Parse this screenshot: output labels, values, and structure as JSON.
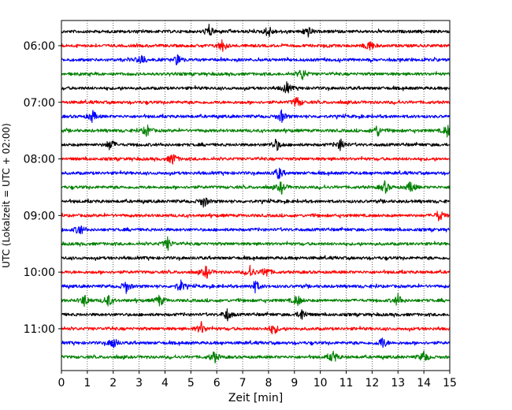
{
  "chart_data": {
    "type": "line",
    "chart_kind": "helicorder (seismogram drum plot)",
    "xlabel": "Zeit  [min]",
    "ylabel": "UTC (Lokalzeit = UTC + 02:00)",
    "xlim": [
      0,
      15
    ],
    "x_ticks": [
      "0",
      "1",
      "2",
      "3",
      "4",
      "5",
      "6",
      "7",
      "8",
      "9",
      "10",
      "11",
      "12",
      "13",
      "14",
      "15"
    ],
    "y_tick_labels": [
      "06:00",
      "07:00",
      "08:00",
      "09:00",
      "10:00",
      "11:00"
    ],
    "trace_interval_min": 15,
    "trace_start": "05:45",
    "trace_end": "11:45",
    "grid": "vertical dotted lines every minute",
    "trace_colors": [
      "#000000",
      "#ff0000",
      "#0000ff",
      "#008000"
    ],
    "traces": [
      {
        "start": "05:45",
        "color": "#000000",
        "events_min": [
          5.7,
          8.0,
          9.5
        ]
      },
      {
        "start": "06:00",
        "color": "#ff0000",
        "events_min": [
          6.2,
          11.9
        ]
      },
      {
        "start": "06:15",
        "color": "#0000ff",
        "events_min": [
          3.1,
          4.5
        ]
      },
      {
        "start": "06:30",
        "color": "#008000",
        "events_min": [
          9.3
        ]
      },
      {
        "start": "06:45",
        "color": "#000000",
        "events_min": [
          8.7
        ]
      },
      {
        "start": "07:00",
        "color": "#ff0000",
        "events_min": [
          9.1
        ]
      },
      {
        "start": "07:15",
        "color": "#0000ff",
        "events_min": [
          1.2,
          8.5
        ]
      },
      {
        "start": "07:30",
        "color": "#008000",
        "events_min": [
          3.3,
          12.2,
          14.9
        ]
      },
      {
        "start": "07:45",
        "color": "#000000",
        "events_min": [
          1.9,
          8.3,
          10.8
        ]
      },
      {
        "start": "08:00",
        "color": "#ff0000",
        "events_min": [
          4.3
        ]
      },
      {
        "start": "08:15",
        "color": "#0000ff",
        "events_min": [
          8.4
        ]
      },
      {
        "start": "08:30",
        "color": "#008000",
        "events_min": [
          8.5,
          12.5,
          13.5
        ]
      },
      {
        "start": "08:45",
        "color": "#000000",
        "events_min": [
          5.5
        ]
      },
      {
        "start": "09:00",
        "color": "#ff0000",
        "events_min": [
          14.6
        ]
      },
      {
        "start": "09:15",
        "color": "#0000ff",
        "events_min": [
          0.7
        ]
      },
      {
        "start": "09:30",
        "color": "#008000",
        "events_min": [
          4.1
        ]
      },
      {
        "start": "09:45",
        "color": "#000000",
        "events_min": []
      },
      {
        "start": "10:00",
        "color": "#ff0000",
        "events_min": [
          5.6,
          7.3,
          7.9
        ]
      },
      {
        "start": "10:15",
        "color": "#0000ff",
        "events_min": [
          2.5,
          4.6,
          7.5
        ]
      },
      {
        "start": "10:30",
        "color": "#008000",
        "events_min": [
          0.9,
          1.8,
          3.8,
          9.1,
          13.0
        ]
      },
      {
        "start": "10:45",
        "color": "#000000",
        "events_min": [
          6.4,
          9.3
        ]
      },
      {
        "start": "11:00",
        "color": "#ff0000",
        "events_min": [
          5.4,
          8.2
        ]
      },
      {
        "start": "11:15",
        "color": "#0000ff",
        "events_min": [
          2.0,
          12.4
        ]
      },
      {
        "start": "11:30",
        "color": "#008000",
        "events_min": [
          5.9,
          10.5,
          14.0
        ]
      }
    ]
  }
}
